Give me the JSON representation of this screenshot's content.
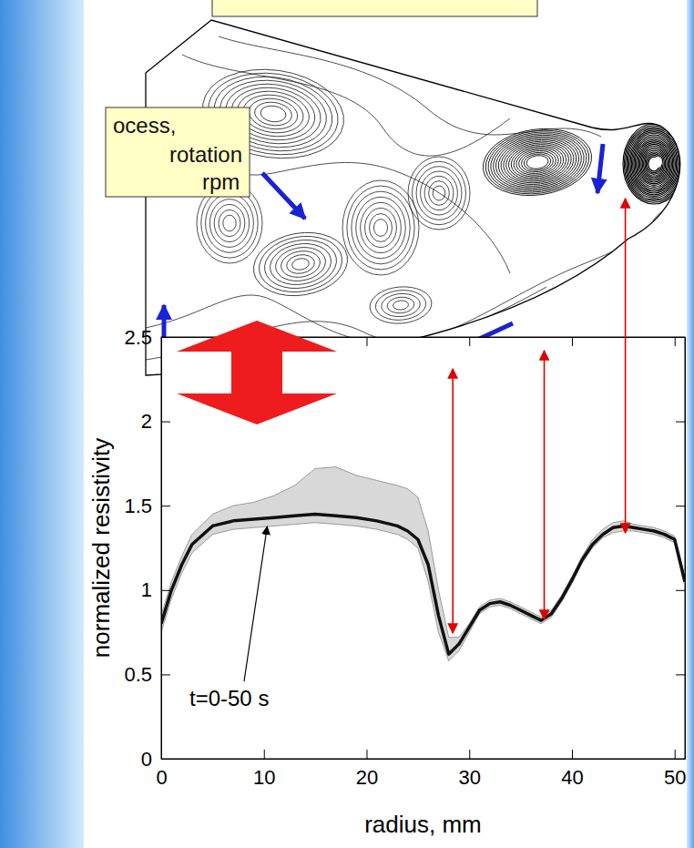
{
  "chart_data": {
    "type": "line",
    "x_label": "radius, mm",
    "y_label": "normalized resistivity",
    "x": [
      0,
      1,
      2,
      3,
      5,
      7,
      9,
      11,
      13,
      15,
      17,
      19,
      21,
      23,
      24,
      25,
      26,
      27,
      28,
      29,
      30,
      31,
      32,
      33,
      34,
      35,
      36,
      37,
      38,
      39,
      40,
      41,
      42,
      43,
      44,
      45,
      46,
      47,
      48,
      49,
      50,
      51
    ],
    "series": [
      {
        "type": "line",
        "color": "#9a9a9a",
        "values": [
          0.85,
          1.05,
          1.2,
          1.33,
          1.45,
          1.5,
          1.52,
          1.56,
          1.62,
          1.72,
          1.73,
          1.68,
          1.65,
          1.62,
          1.6,
          1.55,
          1.35,
          1.0,
          0.72,
          0.72,
          0.8,
          0.9,
          0.94,
          0.95,
          0.93,
          0.9,
          0.87,
          0.84,
          0.88,
          0.97,
          1.08,
          1.2,
          1.3,
          1.36,
          1.4,
          1.41,
          1.39,
          1.38,
          1.37,
          1.35,
          1.32,
          1.08
        ]
      },
      {
        "type": "line",
        "color": "#9a9a9a",
        "values": [
          0.75,
          0.95,
          1.1,
          1.22,
          1.33,
          1.36,
          1.37,
          1.38,
          1.39,
          1.4,
          1.39,
          1.38,
          1.36,
          1.33,
          1.3,
          1.25,
          1.05,
          0.75,
          0.58,
          0.64,
          0.75,
          0.86,
          0.9,
          0.91,
          0.89,
          0.86,
          0.83,
          0.8,
          0.84,
          0.93,
          1.04,
          1.16,
          1.25,
          1.31,
          1.34,
          1.35,
          1.35,
          1.34,
          1.33,
          1.31,
          1.28,
          1.02
        ]
      },
      {
        "type": "line",
        "color": "#111111",
        "values": [
          0.8,
          1.0,
          1.15,
          1.27,
          1.38,
          1.41,
          1.42,
          1.43,
          1.44,
          1.45,
          1.44,
          1.43,
          1.41,
          1.38,
          1.35,
          1.3,
          1.15,
          0.85,
          0.62,
          0.68,
          0.78,
          0.88,
          0.92,
          0.93,
          0.91,
          0.88,
          0.85,
          0.82,
          0.86,
          0.95,
          1.06,
          1.18,
          1.27,
          1.33,
          1.37,
          1.38,
          1.37,
          1.36,
          1.35,
          1.33,
          1.3,
          1.05
        ]
      }
    ],
    "xlim": [
      0,
      51
    ],
    "xticks": [
      0,
      10,
      20,
      30,
      40,
      50
    ],
    "ylim": [
      0,
      2.5
    ],
    "yticks": [
      0,
      0.5,
      1,
      1.5,
      2,
      2.5
    ],
    "grid": false,
    "annotations": [
      {
        "text": "t=0-50 s",
        "x": 10.5,
        "y": 1.42
      }
    ],
    "correspondence_x": [
      28.4,
      37.3,
      45.2
    ]
  },
  "text_boxes": [
    {
      "lines": [
        "ocess,",
        "rotation",
        "rpm"
      ]
    }
  ]
}
